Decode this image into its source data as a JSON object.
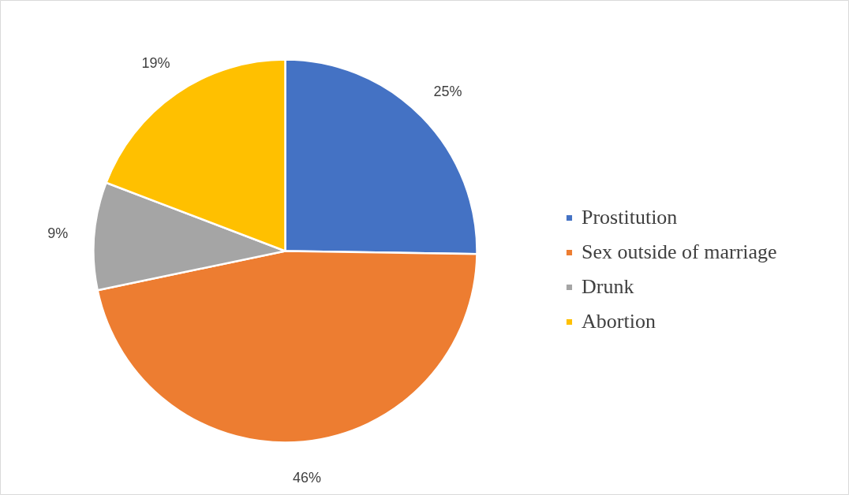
{
  "chart_data": {
    "type": "pie",
    "categories": [
      "Prostitution",
      "Sex outside of marriage",
      "Drunk",
      "Abortion"
    ],
    "values": [
      25,
      46,
      9,
      19
    ],
    "colors": [
      "#4472c4",
      "#ed7d31",
      "#a5a5a5",
      "#ffc000"
    ],
    "value_labels": [
      "25%",
      "46%",
      "9%",
      "19%"
    ],
    "legend": "right"
  }
}
